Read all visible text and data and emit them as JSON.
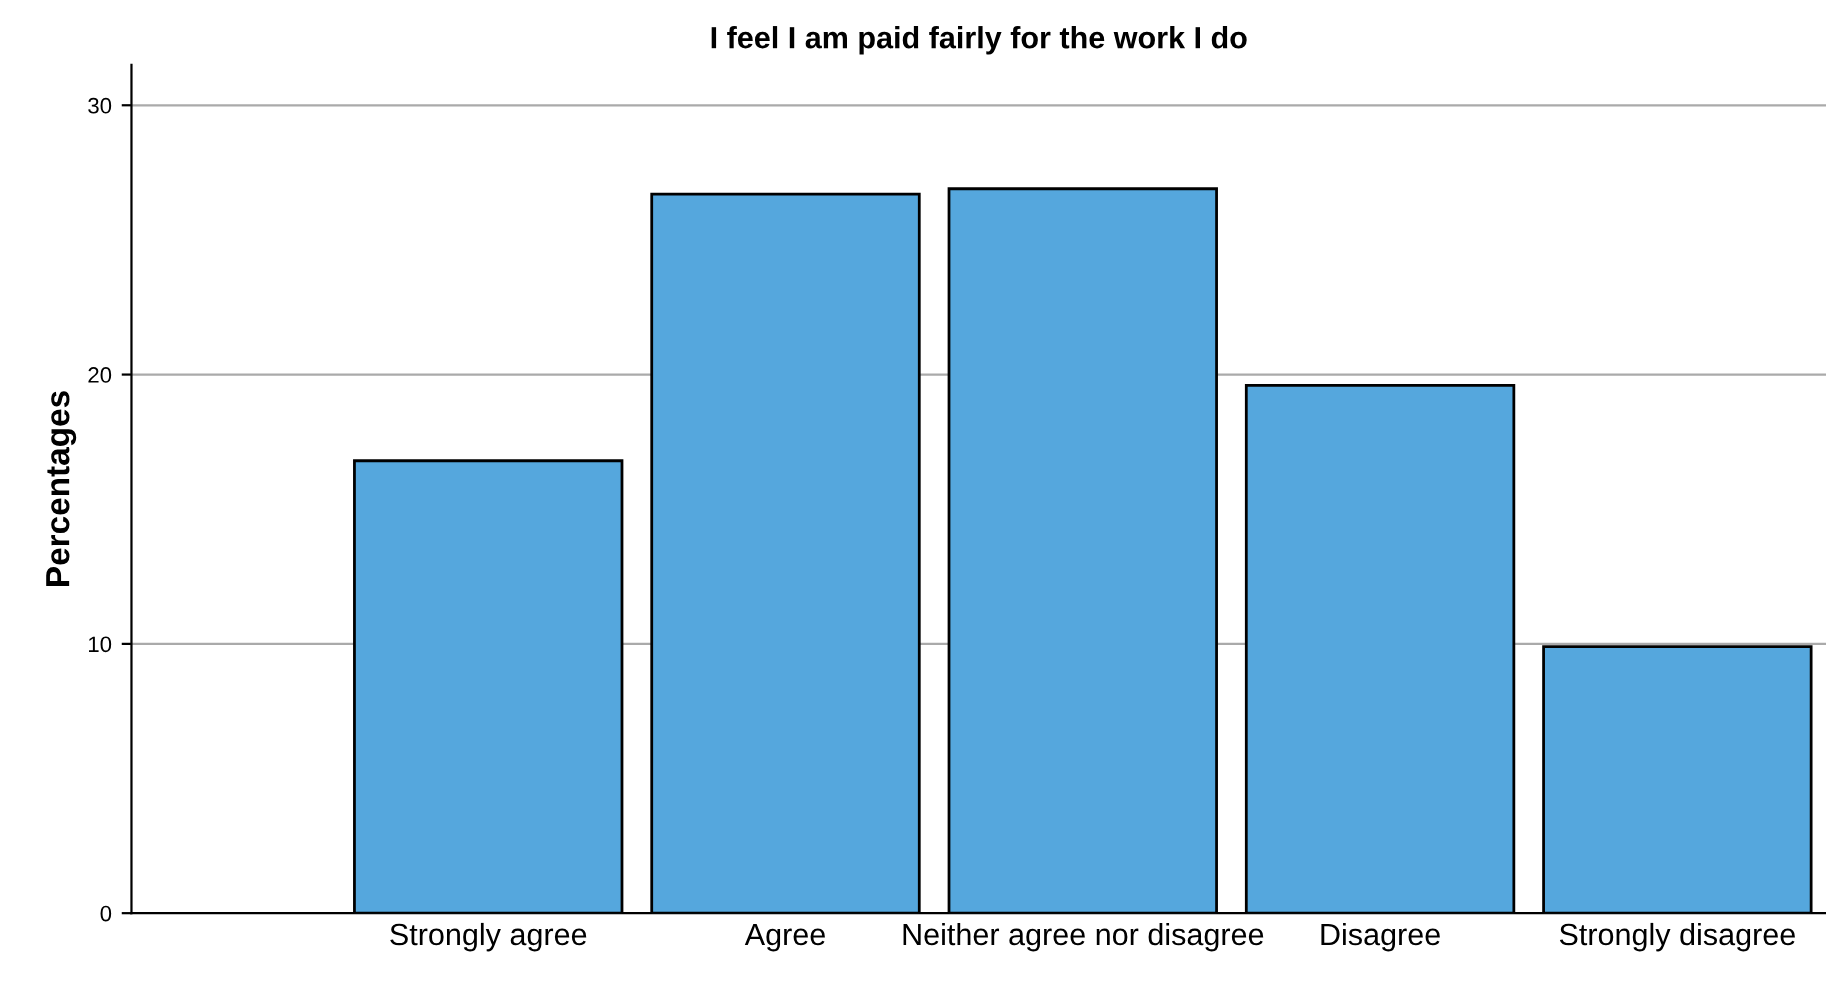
{
  "chart_data": {
    "type": "bar",
    "title": "I feel I am paid fairly for the work I do",
    "ylabel": "Percentages",
    "categories": [
      "Strongly agree",
      "Agree",
      "Neither agree nor disagree",
      "Disagree",
      "Strongly disagree"
    ],
    "values": [
      16.8,
      26.7,
      26.9,
      19.6,
      9.9
    ],
    "color": "#55a7dd",
    "ylim": [
      0,
      31.5
    ],
    "yticks": [
      0,
      10,
      20,
      30
    ],
    "grid": "y"
  }
}
